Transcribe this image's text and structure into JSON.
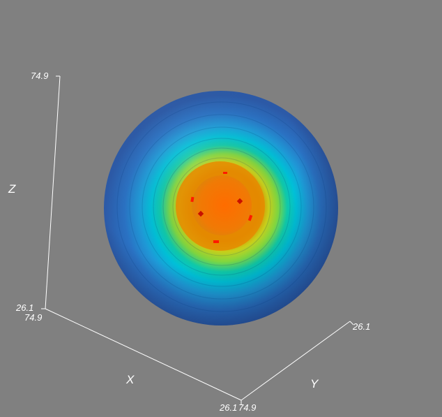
{
  "viewer": {
    "background_color": "#808080",
    "axis_color": "#ffffff",
    "colormap": [
      "#2a5fb5",
      "#1e90d8",
      "#00c8d6",
      "#22c76a",
      "#c8d818",
      "#e6a400",
      "#ff6a00"
    ],
    "marker_color": "#ff1a00"
  },
  "axes": {
    "z": {
      "title": "Z",
      "tick_max": "74.9",
      "tick_min": "26.1"
    },
    "x": {
      "title": "X",
      "tick_max": "74.9",
      "tick_min": "26.1"
    },
    "y": {
      "title": "Y",
      "tick_max": "74.9",
      "tick_min": "26.1"
    }
  },
  "object": {
    "name": "nested-shell-sphere",
    "marker_count": 6
  }
}
